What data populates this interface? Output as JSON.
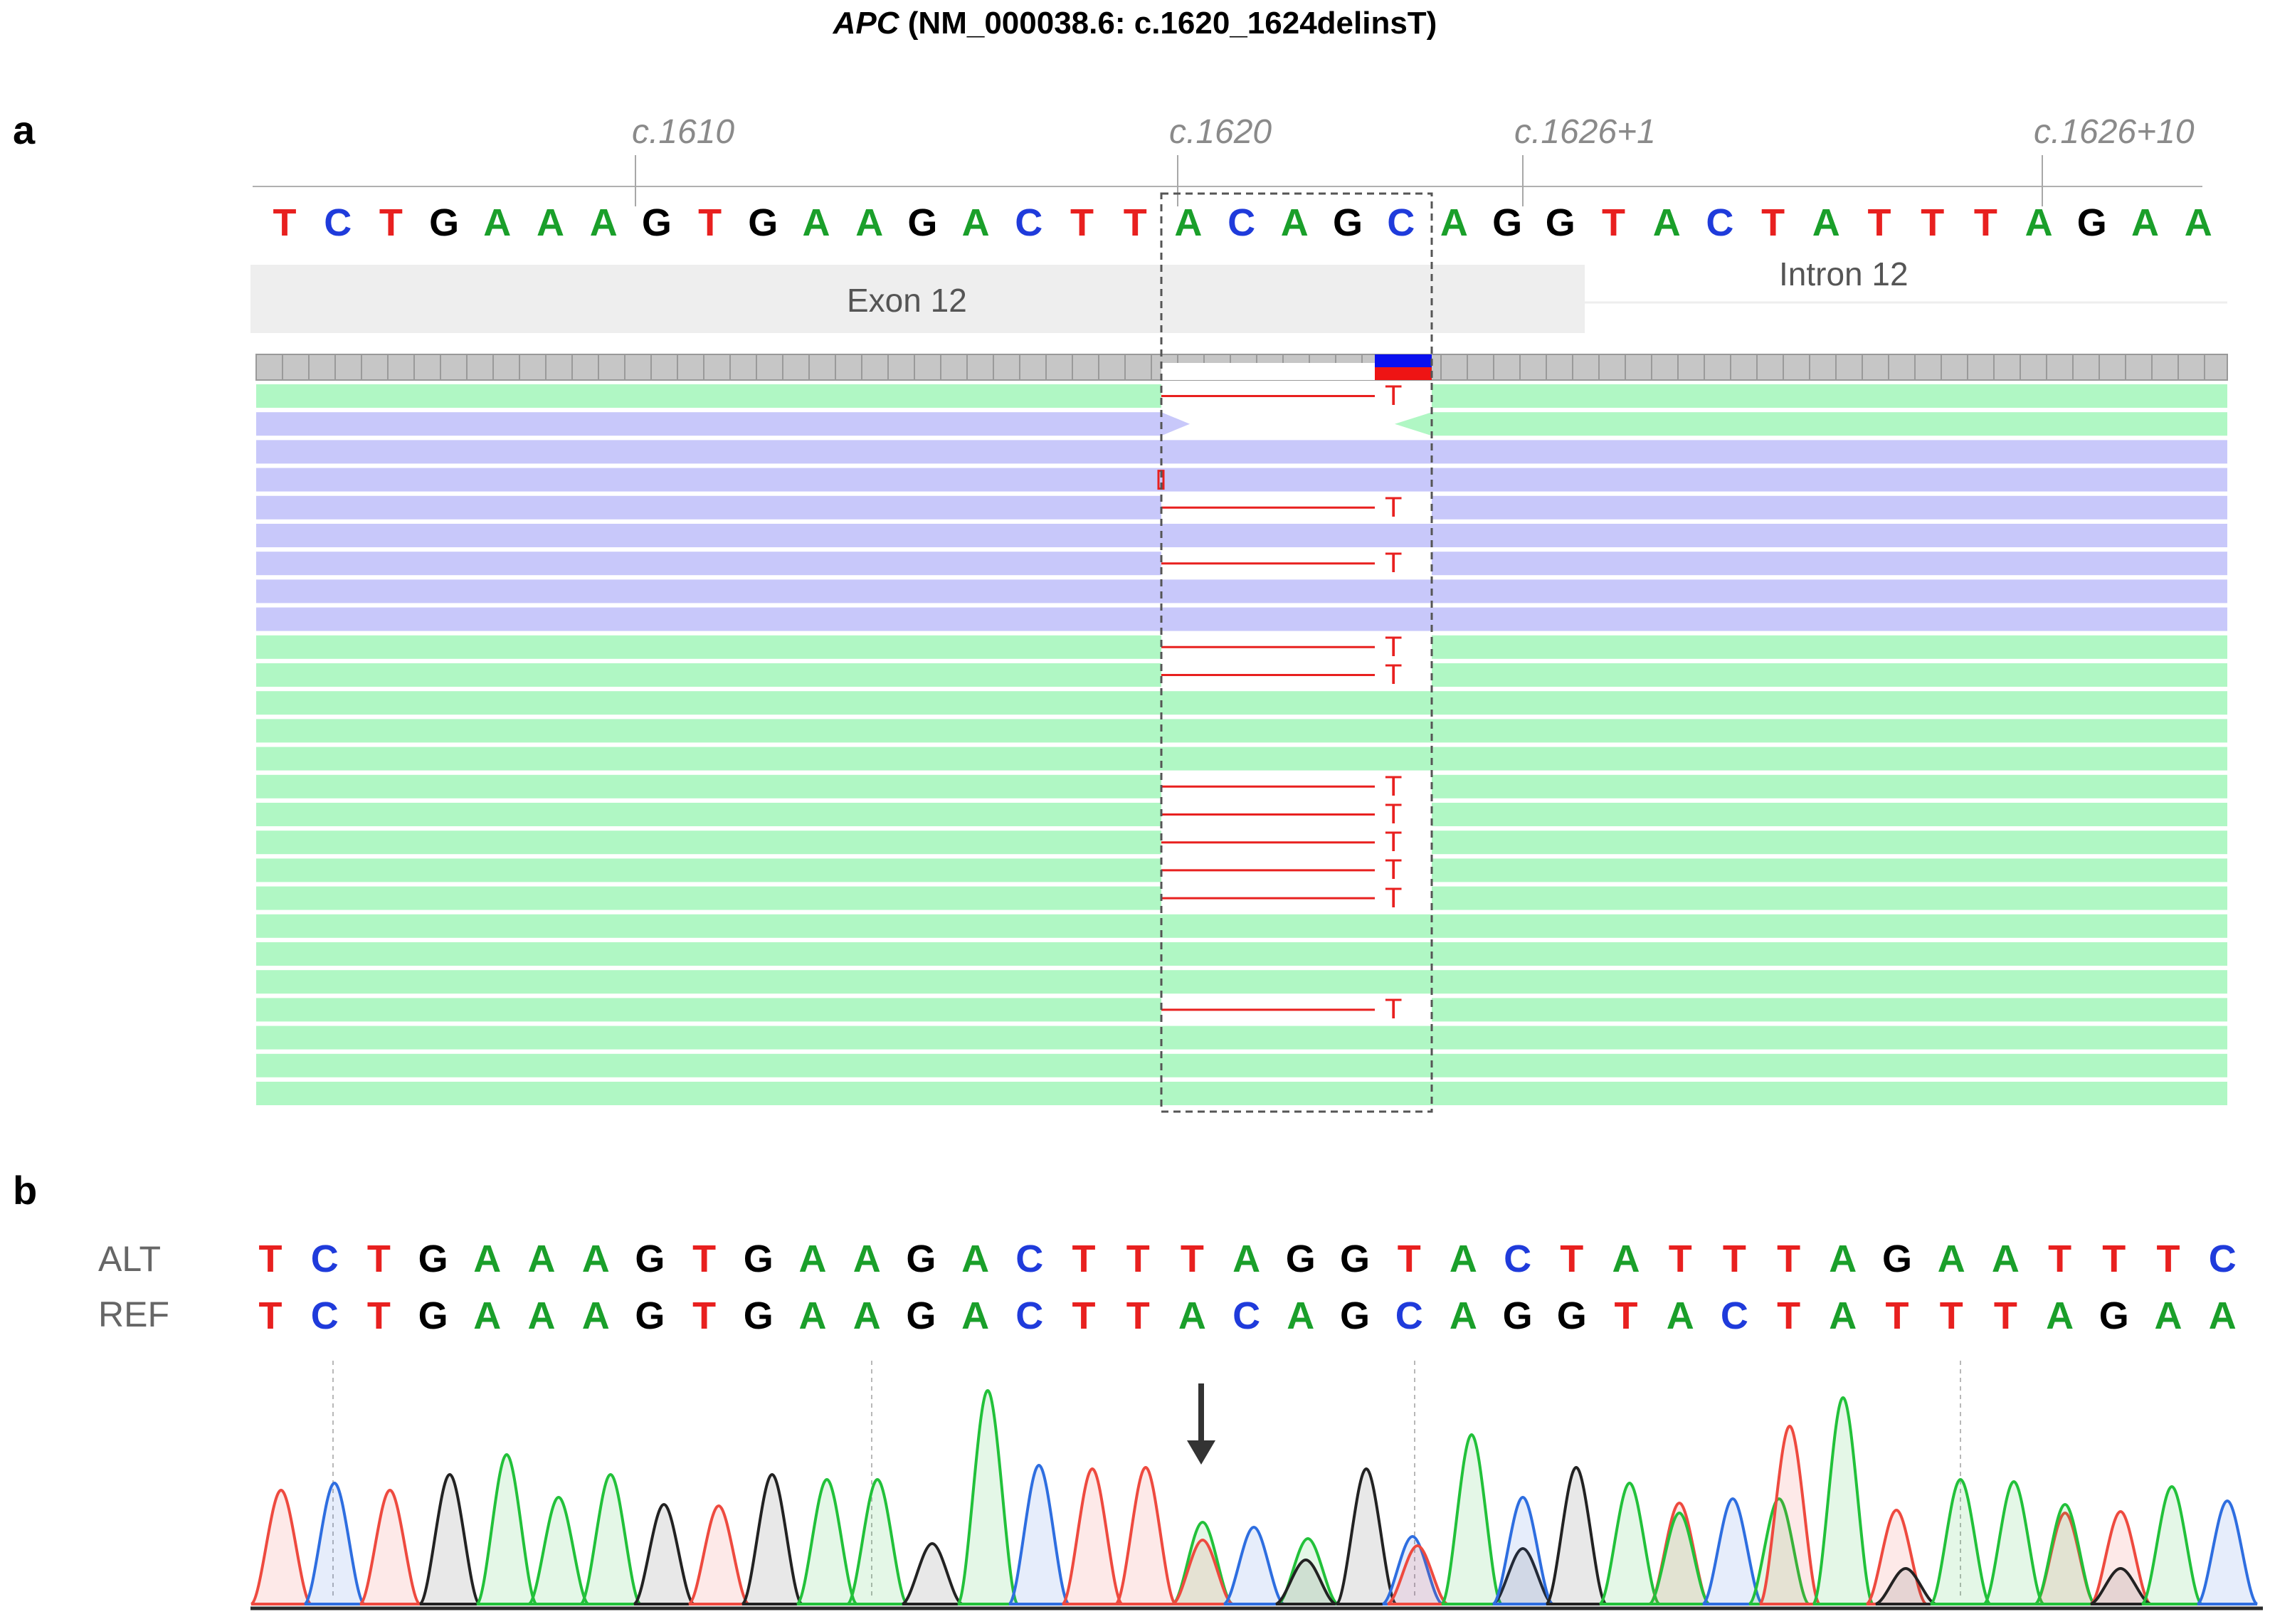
{
  "title": {
    "gene": "APC",
    "variant": "(NM_000038.6: c.1620_1624delinsT)"
  },
  "panel_a": {
    "letter": "a",
    "coordinate_labels": [
      "c.1610",
      "c.1620",
      "c.1626+1",
      "c.1626+10"
    ],
    "reference_sequence": [
      "T",
      "C",
      "T",
      "G",
      "A",
      "A",
      "A",
      "G",
      "T",
      "G",
      "A",
      "A",
      "G",
      "A",
      "C",
      "T",
      "T",
      "A",
      "C",
      "A",
      "G",
      "C",
      "A",
      "G",
      "G",
      "T",
      "A",
      "C",
      "T",
      "A",
      "T",
      "T",
      "T",
      "A",
      "G",
      "A",
      "A"
    ],
    "features": {
      "exon": "Exon 12",
      "intron": "Intron 12"
    },
    "read_rows": [
      {
        "strand": "fwd",
        "alt": true
      },
      {
        "strand": "rev-split",
        "alt": false
      },
      {
        "strand": "rev",
        "alt": false
      },
      {
        "strand": "rev",
        "alt": false
      },
      {
        "strand": "rev",
        "alt": true
      },
      {
        "strand": "rev",
        "alt": false
      },
      {
        "strand": "rev",
        "alt": true
      },
      {
        "strand": "rev",
        "alt": false
      },
      {
        "strand": "rev",
        "alt": false
      },
      {
        "strand": "fwd",
        "alt": true
      },
      {
        "strand": "fwd",
        "alt": true
      },
      {
        "strand": "fwd",
        "alt": false
      },
      {
        "strand": "fwd",
        "alt": false
      },
      {
        "strand": "fwd",
        "alt": false
      },
      {
        "strand": "fwd",
        "alt": true
      },
      {
        "strand": "fwd",
        "alt": true
      },
      {
        "strand": "fwd",
        "alt": true
      },
      {
        "strand": "fwd",
        "alt": true
      },
      {
        "strand": "fwd",
        "alt": true
      },
      {
        "strand": "fwd",
        "alt": false
      },
      {
        "strand": "fwd",
        "alt": false
      },
      {
        "strand": "fwd",
        "alt": false
      },
      {
        "strand": "fwd",
        "alt": true
      },
      {
        "strand": "fwd",
        "alt": false
      },
      {
        "strand": "fwd",
        "alt": false
      },
      {
        "strand": "fwd",
        "alt": false
      }
    ],
    "insertion_base": "T"
  },
  "panel_b": {
    "letter": "b",
    "alt_label": "ALT",
    "ref_label": "REF",
    "alt_sequence": [
      "T",
      "C",
      "T",
      "G",
      "A",
      "A",
      "A",
      "G",
      "T",
      "G",
      "A",
      "A",
      "G",
      "A",
      "C",
      "T",
      "T",
      "T",
      "A",
      "G",
      "G",
      "T",
      "A",
      "C",
      "T",
      "A",
      "T",
      "T",
      "T",
      "A",
      "G",
      "A",
      "A",
      "T",
      "T",
      "T",
      "C"
    ],
    "ref_sequence": [
      "T",
      "C",
      "T",
      "G",
      "A",
      "A",
      "A",
      "G",
      "T",
      "G",
      "A",
      "A",
      "G",
      "A",
      "C",
      "T",
      "T",
      "A",
      "C",
      "A",
      "G",
      "C",
      "A",
      "G",
      "G",
      "T",
      "A",
      "C",
      "T",
      "A",
      "T",
      "T",
      "T",
      "A",
      "G",
      "A",
      "A"
    ]
  },
  "colors": {
    "A": "#1a9f2a",
    "C": "#1f3bdb",
    "G": "#000000",
    "T": "#e8201f",
    "fwd_read": "#b0f7c4",
    "rev_read": "#c8c8fa",
    "trace_A": "#22c13a",
    "trace_C": "#2e6ee0",
    "trace_G": "#222222",
    "trace_T": "#ee4a3f"
  }
}
